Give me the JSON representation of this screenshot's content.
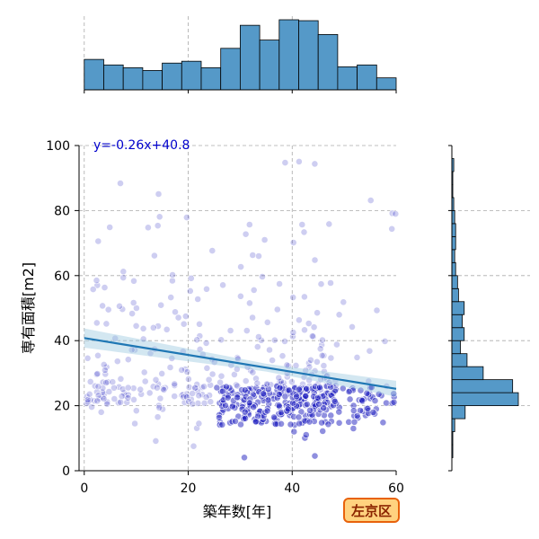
{
  "chart_data": {
    "type": "scatter",
    "title": "",
    "xlabel": "築年数[年]",
    "ylabel": "専有面積[m2]",
    "xlim": [
      -1,
      60
    ],
    "ylim": [
      0,
      100
    ],
    "xticks": [
      0,
      20,
      40,
      60
    ],
    "yticks": [
      0,
      20,
      40,
      60,
      80,
      100
    ],
    "grid": true,
    "regression": {
      "label": "y=-0.26x+40.8",
      "slope": -0.26,
      "intercept": 40.8,
      "line_color": "#1f77b4"
    },
    "badge": "左京区",
    "point_color": "#2020c0",
    "hist_color": "#5599c8",
    "x_histogram": {
      "bin_edges": [
        0,
        3.75,
        7.5,
        11.25,
        15,
        18.75,
        22.5,
        26.25,
        30,
        33.75,
        37.5,
        41.25,
        45,
        48.75,
        52.5,
        56.25,
        60
      ],
      "counts": [
        33,
        27,
        24,
        21,
        29,
        31,
        24,
        45,
        70,
        54,
        76,
        75,
        60,
        25,
        27,
        13
      ]
    },
    "y_histogram": {
      "bin_edges": [
        0,
        4,
        8,
        12,
        16,
        20,
        24,
        28,
        32,
        36,
        40,
        44,
        48,
        52,
        56,
        60,
        64,
        68,
        72,
        76,
        80,
        84,
        88,
        92,
        96,
        100
      ],
      "counts": [
        0,
        1,
        1,
        3,
        14,
        70,
        64,
        33,
        16,
        9,
        13,
        11,
        13,
        7,
        6,
        4,
        3,
        4,
        4,
        3,
        2,
        1,
        1,
        2,
        0
      ]
    }
  }
}
